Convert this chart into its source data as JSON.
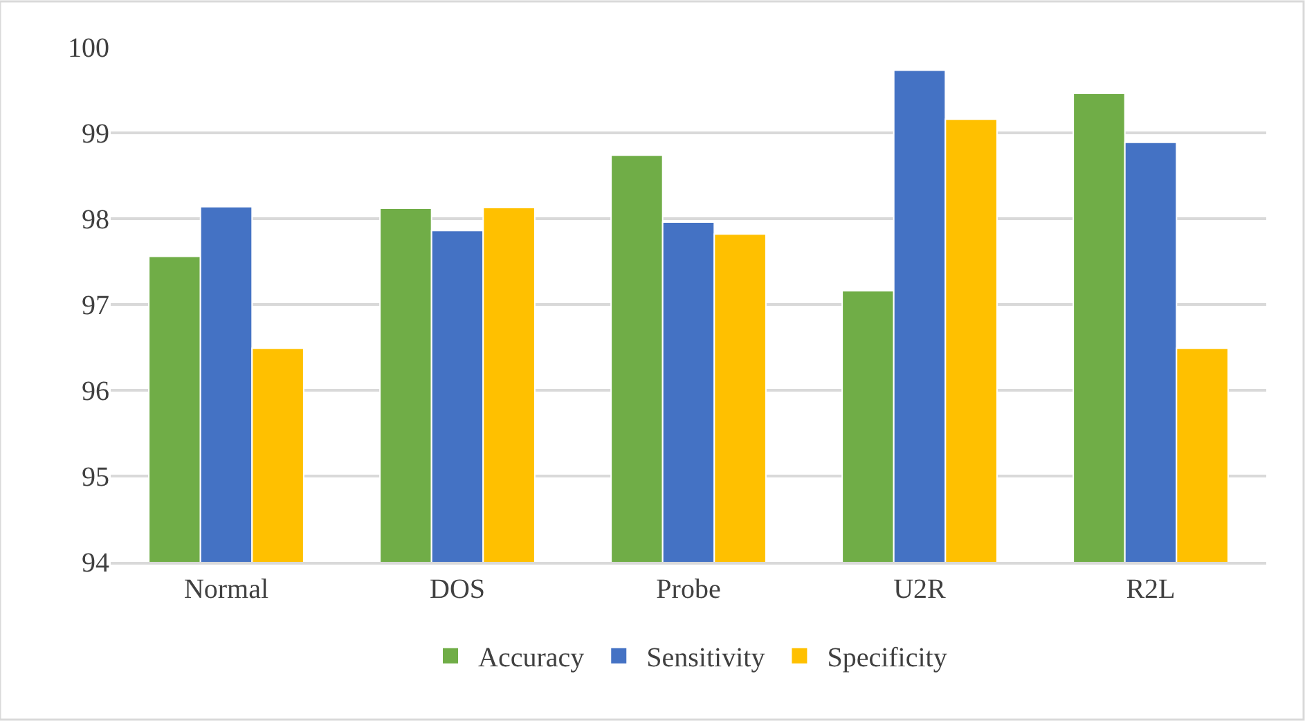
{
  "chart_data": {
    "type": "bar",
    "categories": [
      "Normal",
      "DOS",
      "Probe",
      "U2R",
      "R2L"
    ],
    "series": [
      {
        "name": "Accuracy",
        "color": "#70ad47",
        "values": [
          97.56,
          98.12,
          98.74,
          97.16,
          99.46
        ]
      },
      {
        "name": "Sensitivity",
        "color": "#4472c4",
        "values": [
          98.14,
          97.86,
          97.96,
          99.73,
          98.89
        ]
      },
      {
        "name": "Specificity",
        "color": "#ffc000",
        "values": [
          96.49,
          98.13,
          97.82,
          99.16,
          96.49
        ]
      }
    ],
    "ylim": [
      94,
      100
    ],
    "yticks": [
      94,
      95,
      96,
      97,
      98,
      99,
      100
    ],
    "grid": "y",
    "legend": "bottom"
  }
}
